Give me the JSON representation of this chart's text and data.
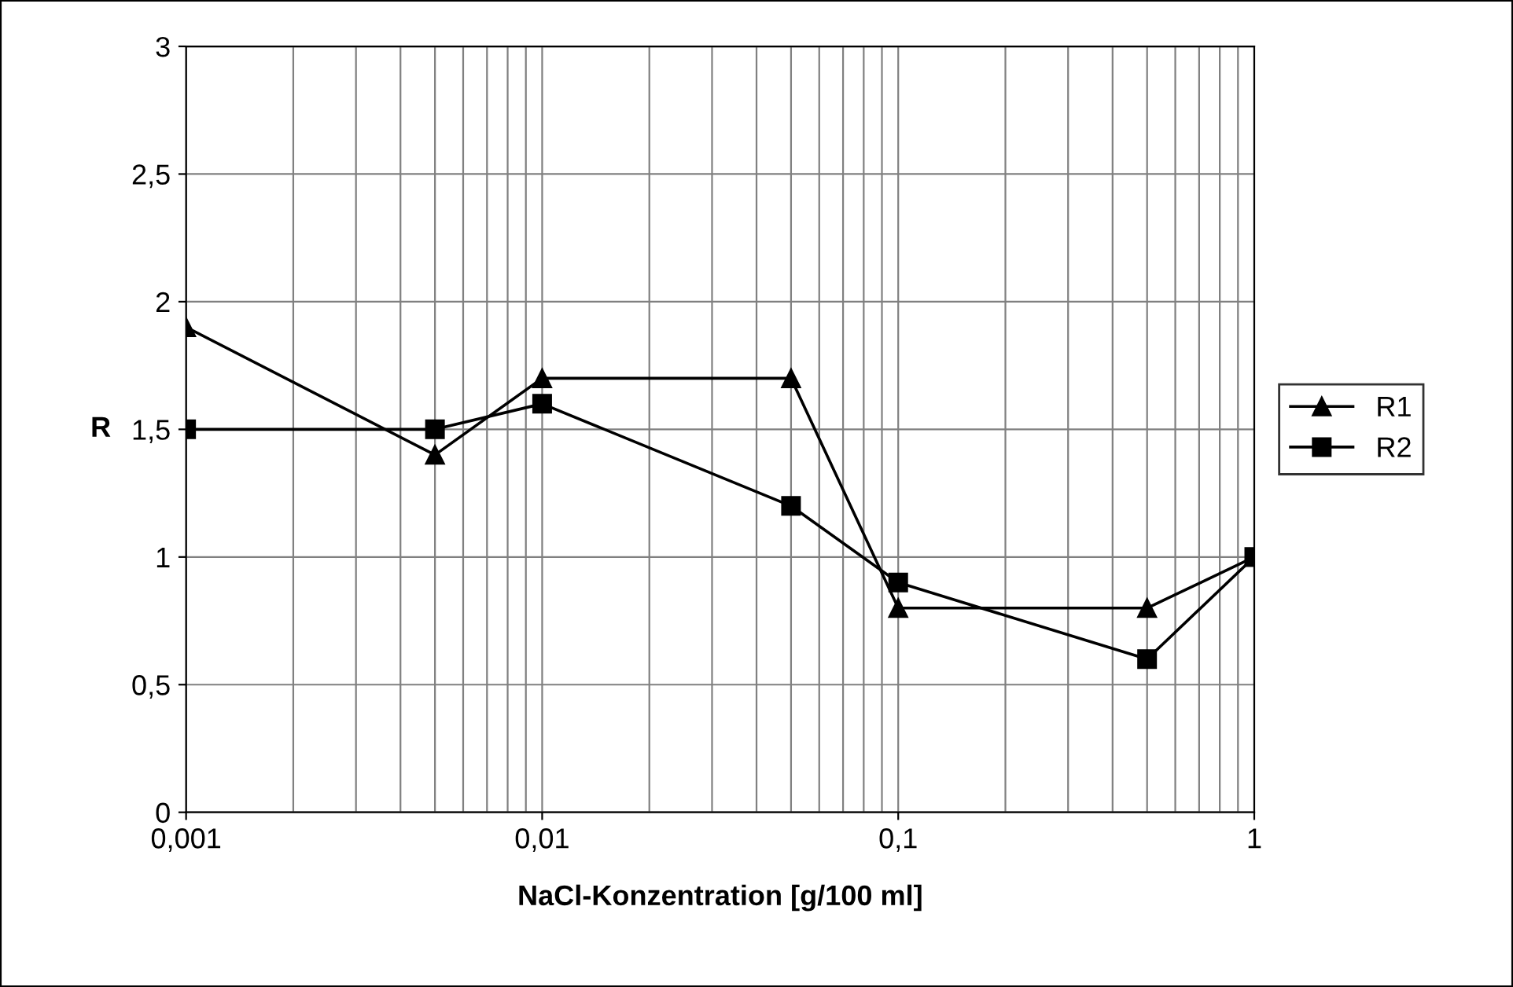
{
  "chart_data": {
    "type": "line",
    "xlabel": "NaCl-Konzentration [g/100 ml]",
    "ylabel": "R",
    "x": [
      0.001,
      0.005,
      0.01,
      0.05,
      0.1,
      0.5,
      1
    ],
    "series": [
      {
        "name": "R1",
        "color": "#000000",
        "marker": "triangle",
        "values": [
          1.9,
          1.4,
          1.7,
          1.7,
          0.8,
          0.8,
          1.0
        ]
      },
      {
        "name": "R2",
        "color": "#000000",
        "marker": "square",
        "values": [
          1.5,
          1.5,
          1.6,
          1.2,
          0.9,
          0.6,
          1.0
        ]
      }
    ],
    "log": "x",
    "xlim": [
      0.001,
      1
    ],
    "xticks": [
      {
        "value": 0.001,
        "label": "0,001"
      },
      {
        "value": 0.01,
        "label": "0,01"
      },
      {
        "value": 0.1,
        "label": "0,1"
      },
      1
    ],
    "ylim": [
      0,
      3
    ],
    "yticks": [
      0,
      {
        "value": 0.5,
        "label": "0,5"
      },
      1,
      {
        "value": 1.5,
        "label": "1,5"
      },
      2,
      {
        "value": 2.5,
        "label": "2,5"
      },
      3
    ],
    "grid": true,
    "legend": "right",
    "line_style": "solid"
  }
}
